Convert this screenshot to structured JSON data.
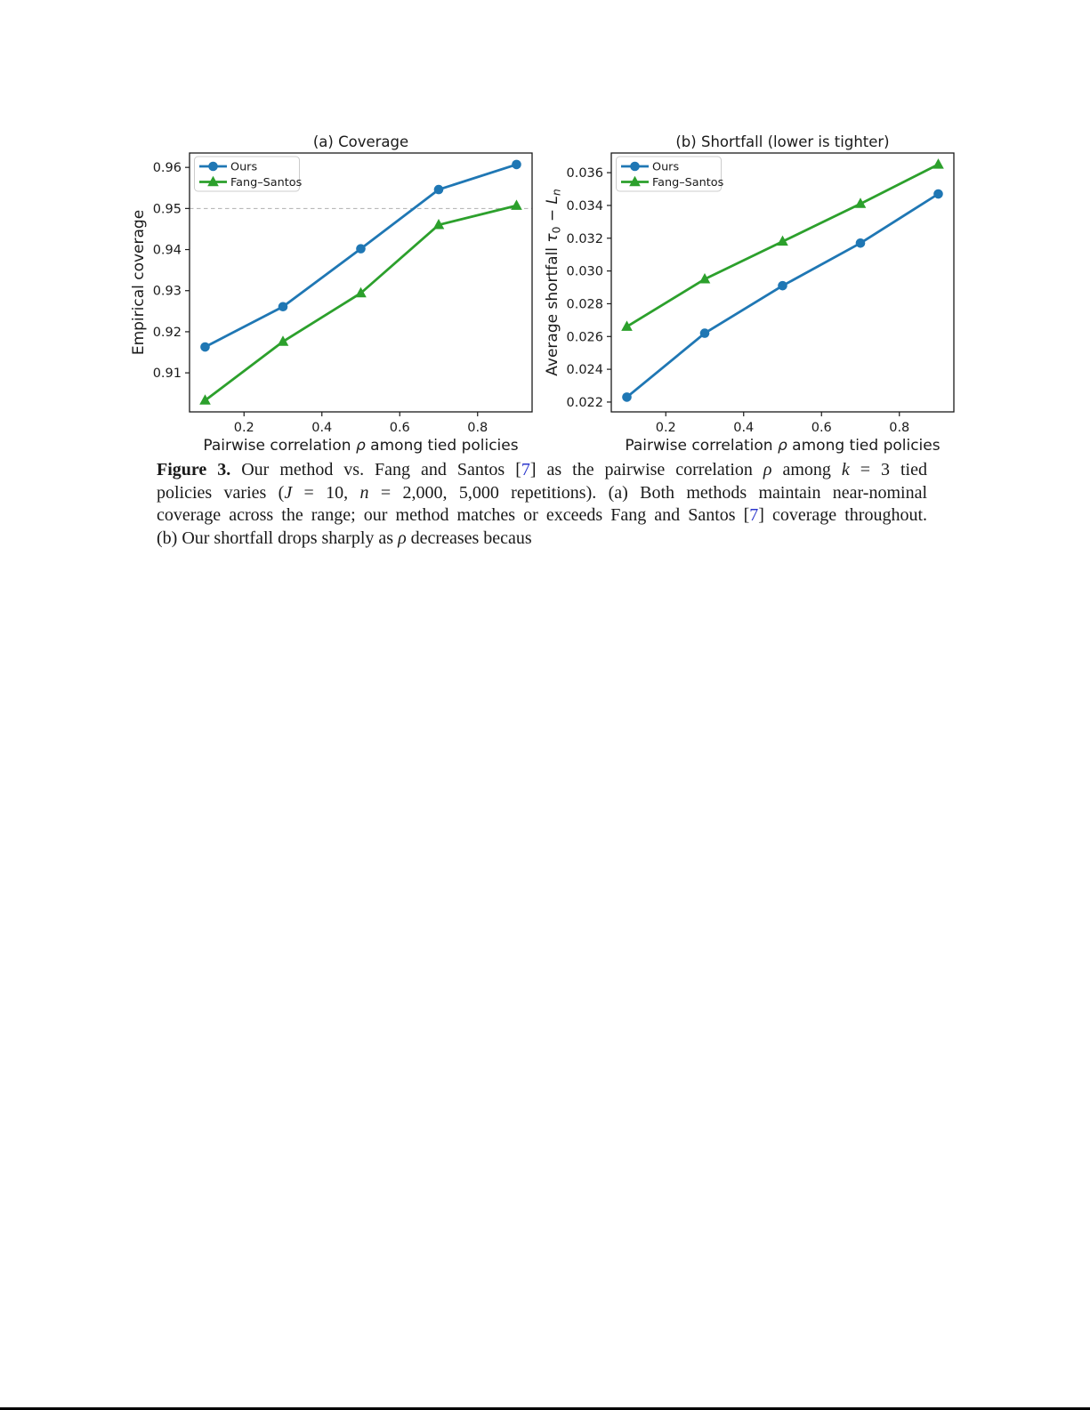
{
  "page": {
    "background": "#ffffff",
    "bottom_rule_color": "#000000"
  },
  "chart_data": [
    {
      "type": "line",
      "title": "(a) Coverage",
      "xlabel": [
        {
          "text": "Pairwise correlation ",
          "style": "plain"
        },
        {
          "text": "ρ",
          "style": "plain",
          "italic": true
        },
        {
          "text": " among tied policies",
          "style": "plain"
        }
      ],
      "ylabel": [
        {
          "text": "Empirical coverage",
          "style": "plain"
        }
      ],
      "x": [
        0.1,
        0.3,
        0.5,
        0.7,
        0.9
      ],
      "series": [
        {
          "name": "Ours",
          "color": "#1f77b4",
          "marker": "circle",
          "values": [
            0.9163,
            0.9261,
            0.9402,
            0.9546,
            0.9607
          ]
        },
        {
          "name": "Fang–Santos",
          "color": "#2ca02c",
          "marker": "triangle",
          "values": [
            0.9033,
            0.9176,
            0.9294,
            0.946,
            0.9507
          ]
        }
      ],
      "xlim": [
        0.06,
        0.94
      ],
      "ylim": [
        0.9005,
        0.9635
      ],
      "xticks": [
        {
          "v": 0.2,
          "label": "0.2"
        },
        {
          "v": 0.4,
          "label": "0.4"
        },
        {
          "v": 0.6,
          "label": "0.6"
        },
        {
          "v": 0.8,
          "label": "0.8"
        }
      ],
      "yticks": [
        {
          "v": 0.91,
          "label": "0.91"
        },
        {
          "v": 0.92,
          "label": "0.92"
        },
        {
          "v": 0.93,
          "label": "0.93"
        },
        {
          "v": 0.94,
          "label": "0.94"
        },
        {
          "v": 0.95,
          "label": "0.95"
        },
        {
          "v": 0.96,
          "label": "0.96"
        }
      ],
      "ref_line": {
        "y": 0.95,
        "color": "#b0b0b0",
        "style": "dashed"
      },
      "legend": {
        "position": "upper-left",
        "entries": [
          "Ours",
          "Fang–Santos"
        ]
      },
      "grid": false
    },
    {
      "type": "line",
      "title": "(b) Shortfall (lower is tighter)",
      "xlabel": [
        {
          "text": "Pairwise correlation ",
          "style": "plain"
        },
        {
          "text": "ρ",
          "style": "plain",
          "italic": true
        },
        {
          "text": " among tied policies",
          "style": "plain"
        }
      ],
      "ylabel": [
        {
          "text": "Average shortfall ",
          "style": "plain"
        },
        {
          "text": "τ",
          "style": "plain",
          "italic": true
        },
        {
          "text": "0",
          "style": "plain",
          "sub": true
        },
        {
          "text": " − ",
          "style": "plain"
        },
        {
          "text": "L",
          "style": "plain",
          "italic": true
        },
        {
          "text": "n",
          "style": "plain",
          "italic": true,
          "sub": true
        }
      ],
      "x": [
        0.1,
        0.3,
        0.5,
        0.7,
        0.9
      ],
      "series": [
        {
          "name": "Ours",
          "color": "#1f77b4",
          "marker": "circle",
          "values": [
            0.0223,
            0.0262,
            0.0291,
            0.0317,
            0.0347
          ]
        },
        {
          "name": "Fang–Santos",
          "color": "#2ca02c",
          "marker": "triangle",
          "values": [
            0.0266,
            0.0295,
            0.0318,
            0.0341,
            0.0365
          ]
        }
      ],
      "xlim": [
        0.06,
        0.94
      ],
      "ylim": [
        0.0214,
        0.0372
      ],
      "xticks": [
        {
          "v": 0.2,
          "label": "0.2"
        },
        {
          "v": 0.4,
          "label": "0.4"
        },
        {
          "v": 0.6,
          "label": "0.6"
        },
        {
          "v": 0.8,
          "label": "0.8"
        }
      ],
      "yticks": [
        {
          "v": 0.022,
          "label": "0.022"
        },
        {
          "v": 0.024,
          "label": "0.024"
        },
        {
          "v": 0.026,
          "label": "0.026"
        },
        {
          "v": 0.028,
          "label": "0.028"
        },
        {
          "v": 0.03,
          "label": "0.030"
        },
        {
          "v": 0.032,
          "label": "0.032"
        },
        {
          "v": 0.034,
          "label": "0.034"
        },
        {
          "v": 0.036,
          "label": "0.036"
        }
      ],
      "legend": {
        "position": "upper-left",
        "entries": [
          "Ours",
          "Fang–Santos"
        ]
      },
      "grid": false
    }
  ],
  "figure": {
    "caption": {
      "ref_color": "#2b36cc",
      "lines": [
        [
          {
            "style": "bold",
            "text": "Figure 3."
          },
          {
            "style": "plain",
            "text": " Our method vs. Fang and Santos ["
          },
          {
            "style": "ref",
            "text": "7"
          },
          {
            "style": "plain",
            "text": "] as the pairwise correlation "
          },
          {
            "style": "italic",
            "text": "ρ"
          },
          {
            "style": "plain",
            "text": " among "
          },
          {
            "style": "italic",
            "text": "k"
          },
          {
            "style": "plain",
            "text": " = 3 tied"
          }
        ],
        [
          {
            "style": "plain",
            "text": "policies varies ("
          },
          {
            "style": "italic",
            "text": "J"
          },
          {
            "style": "plain",
            "text": " = 10, "
          },
          {
            "style": "italic",
            "text": "n"
          },
          {
            "style": "plain",
            "text": " = 2,000, 5,000 repetitions). (a) Both methods maintain near-nominal"
          }
        ],
        [
          {
            "style": "plain",
            "text": "coverage across the range; our method matches or exceeds Fang and Santos ["
          },
          {
            "style": "ref",
            "text": "7"
          },
          {
            "style": "plain",
            "text": "] coverage throughout."
          }
        ],
        [
          {
            "style": "plain",
            "text": "(b) Our shortfall drops sharply as "
          },
          {
            "style": "italic",
            "text": "ρ"
          },
          {
            "style": "plain",
            "text": " decreases becaus"
          }
        ]
      ]
    }
  }
}
